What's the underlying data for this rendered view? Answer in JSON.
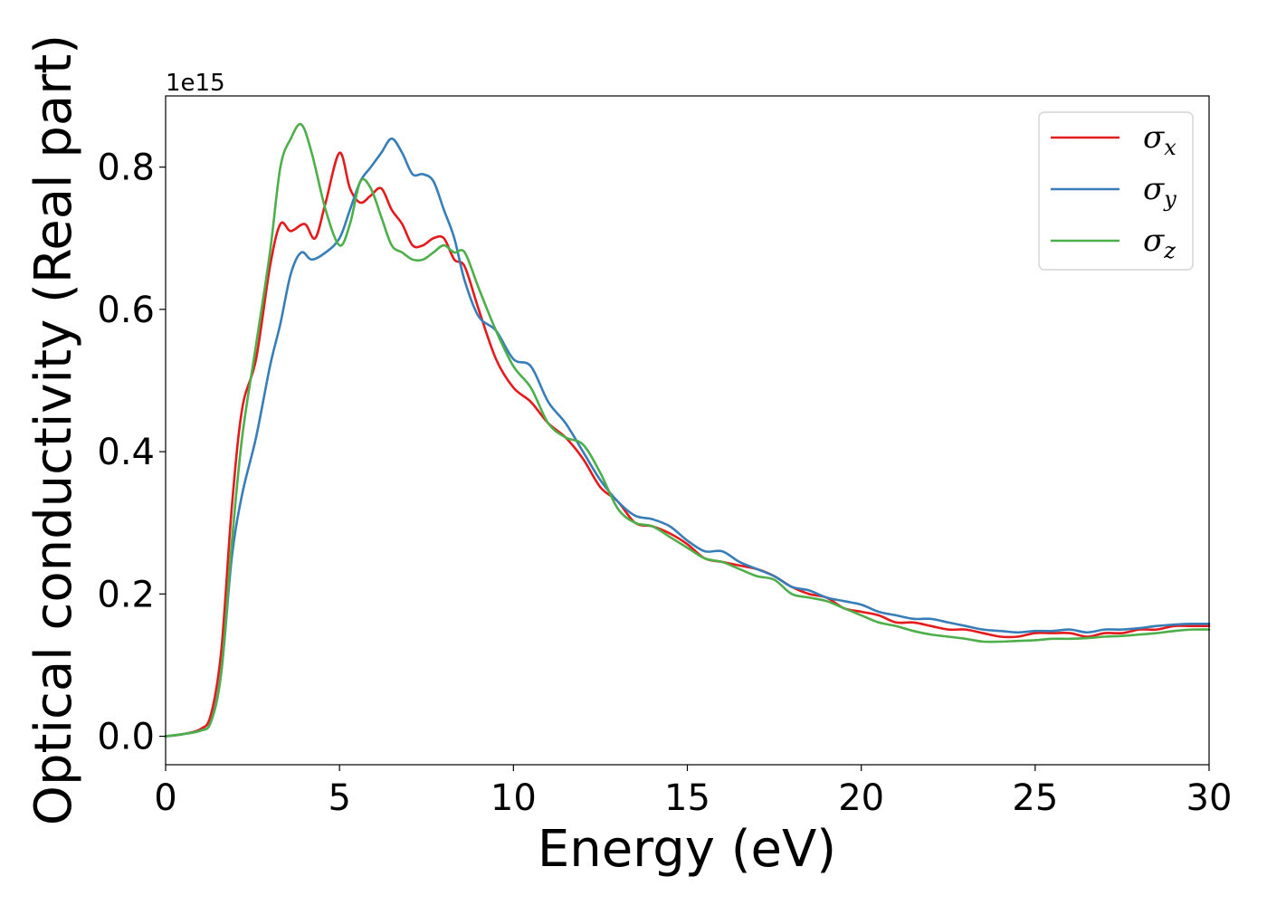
{
  "chart_data": {
    "type": "line",
    "title": "",
    "xlabel": "Energy (eV)",
    "ylabel": "Optical conductivity (Real part)",
    "y_offset_label": "1e15",
    "xlim": [
      0,
      30
    ],
    "ylim": [
      -0.04,
      0.9
    ],
    "xticks": [
      0,
      5,
      10,
      15,
      20,
      25,
      30
    ],
    "xtick_labels": [
      "0",
      "5",
      "10",
      "15",
      "20",
      "25",
      "30"
    ],
    "yticks": [
      0.0,
      0.2,
      0.4,
      0.6,
      0.8
    ],
    "ytick_labels": [
      "0.0",
      "0.2",
      "0.4",
      "0.6",
      "0.8"
    ],
    "grid": false,
    "legend_position": "top-right",
    "series": [
      {
        "name": "σx",
        "symbol": "σ",
        "subscript": "x",
        "color": "#e41a1c",
        "x": [
          0,
          0.5,
          1.0,
          1.3,
          1.6,
          1.9,
          2.2,
          2.6,
          3.0,
          3.3,
          3.6,
          4.0,
          4.3,
          4.6,
          5.0,
          5.3,
          5.6,
          5.9,
          6.2,
          6.5,
          6.8,
          7.1,
          7.4,
          7.7,
          8.0,
          8.3,
          8.6,
          9.0,
          9.5,
          10.0,
          10.5,
          11.0,
          11.5,
          12.0,
          12.5,
          13.0,
          13.5,
          14.0,
          14.5,
          15.0,
          15.5,
          16.0,
          16.5,
          17.0,
          17.5,
          18.0,
          18.5,
          19.0,
          19.5,
          20.0,
          20.5,
          21.0,
          21.5,
          22.0,
          22.5,
          23.0,
          23.5,
          24.0,
          24.5,
          25.0,
          25.5,
          26.0,
          26.5,
          27.0,
          27.5,
          28.0,
          28.5,
          29.0,
          29.5,
          30.0
        ],
        "values": [
          0.0,
          0.003,
          0.01,
          0.03,
          0.12,
          0.32,
          0.46,
          0.53,
          0.66,
          0.72,
          0.71,
          0.72,
          0.7,
          0.75,
          0.82,
          0.77,
          0.75,
          0.76,
          0.77,
          0.74,
          0.72,
          0.69,
          0.69,
          0.7,
          0.7,
          0.67,
          0.66,
          0.6,
          0.53,
          0.49,
          0.47,
          0.44,
          0.42,
          0.39,
          0.35,
          0.33,
          0.3,
          0.295,
          0.285,
          0.27,
          0.25,
          0.245,
          0.24,
          0.235,
          0.225,
          0.21,
          0.2,
          0.195,
          0.18,
          0.175,
          0.17,
          0.16,
          0.16,
          0.155,
          0.15,
          0.15,
          0.145,
          0.14,
          0.14,
          0.145,
          0.145,
          0.145,
          0.14,
          0.145,
          0.145,
          0.15,
          0.15,
          0.155,
          0.155,
          0.155
        ]
      },
      {
        "name": "σy",
        "symbol": "σ",
        "subscript": "y",
        "color": "#377eb8",
        "x": [
          0,
          0.5,
          1.0,
          1.3,
          1.6,
          1.9,
          2.2,
          2.6,
          3.0,
          3.3,
          3.6,
          3.9,
          4.2,
          4.6,
          5.0,
          5.3,
          5.6,
          5.9,
          6.2,
          6.5,
          6.8,
          7.1,
          7.4,
          7.7,
          8.0,
          8.3,
          8.6,
          9.0,
          9.5,
          10.0,
          10.5,
          11.0,
          11.5,
          12.0,
          12.5,
          13.0,
          13.5,
          14.0,
          14.5,
          15.0,
          15.5,
          16.0,
          16.5,
          17.0,
          17.5,
          18.0,
          18.5,
          19.0,
          19.5,
          20.0,
          20.5,
          21.0,
          21.5,
          22.0,
          22.5,
          23.0,
          23.5,
          24.0,
          24.5,
          25.0,
          25.5,
          26.0,
          26.5,
          27.0,
          27.5,
          28.0,
          28.5,
          29.0,
          29.5,
          30.0
        ],
        "values": [
          0.0,
          0.003,
          0.008,
          0.02,
          0.09,
          0.25,
          0.34,
          0.42,
          0.52,
          0.58,
          0.65,
          0.68,
          0.67,
          0.68,
          0.7,
          0.74,
          0.78,
          0.8,
          0.82,
          0.84,
          0.82,
          0.79,
          0.79,
          0.78,
          0.74,
          0.7,
          0.64,
          0.59,
          0.57,
          0.53,
          0.52,
          0.47,
          0.44,
          0.4,
          0.36,
          0.33,
          0.31,
          0.305,
          0.295,
          0.275,
          0.26,
          0.26,
          0.245,
          0.235,
          0.225,
          0.21,
          0.205,
          0.195,
          0.19,
          0.185,
          0.175,
          0.17,
          0.165,
          0.165,
          0.16,
          0.155,
          0.15,
          0.148,
          0.146,
          0.148,
          0.148,
          0.15,
          0.146,
          0.15,
          0.15,
          0.152,
          0.155,
          0.157,
          0.158,
          0.158
        ]
      },
      {
        "name": "σz",
        "symbol": "σ",
        "subscript": "z",
        "color": "#4daf4a",
        "x": [
          0,
          0.5,
          1.0,
          1.3,
          1.6,
          1.9,
          2.2,
          2.6,
          3.0,
          3.3,
          3.6,
          3.9,
          4.2,
          4.6,
          5.0,
          5.3,
          5.6,
          5.9,
          6.2,
          6.5,
          6.8,
          7.1,
          7.4,
          7.7,
          8.0,
          8.3,
          8.6,
          9.0,
          9.5,
          10.0,
          10.5,
          11.0,
          11.5,
          12.0,
          12.5,
          13.0,
          13.5,
          14.0,
          14.5,
          15.0,
          15.5,
          16.0,
          16.5,
          17.0,
          17.5,
          18.0,
          18.5,
          19.0,
          19.5,
          20.0,
          20.5,
          21.0,
          21.5,
          22.0,
          22.5,
          23.0,
          23.5,
          24.0,
          24.5,
          25.0,
          25.5,
          26.0,
          26.5,
          27.0,
          27.5,
          28.0,
          28.5,
          29.0,
          29.5,
          30.0
        ],
        "values": [
          0.0,
          0.003,
          0.008,
          0.02,
          0.09,
          0.27,
          0.42,
          0.55,
          0.68,
          0.8,
          0.84,
          0.86,
          0.82,
          0.74,
          0.69,
          0.72,
          0.78,
          0.77,
          0.73,
          0.69,
          0.68,
          0.67,
          0.67,
          0.68,
          0.69,
          0.68,
          0.68,
          0.63,
          0.57,
          0.52,
          0.49,
          0.44,
          0.42,
          0.41,
          0.37,
          0.32,
          0.3,
          0.295,
          0.28,
          0.265,
          0.25,
          0.245,
          0.235,
          0.225,
          0.22,
          0.2,
          0.195,
          0.19,
          0.18,
          0.17,
          0.16,
          0.155,
          0.148,
          0.143,
          0.14,
          0.137,
          0.133,
          0.133,
          0.134,
          0.135,
          0.137,
          0.137,
          0.138,
          0.14,
          0.141,
          0.143,
          0.145,
          0.148,
          0.15,
          0.15
        ]
      }
    ]
  }
}
